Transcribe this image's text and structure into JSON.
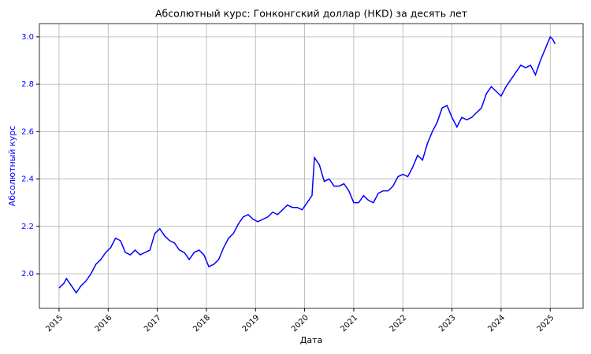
{
  "chart_data": {
    "type": "line",
    "title": "Абсолютный курс: Гонконгский доллар (HKD) за десять лет",
    "x_label": "Дата",
    "y_label": "Абсолютный курс",
    "y_label_color": "#0000ff",
    "x": [
      2015.0,
      2015.1,
      2015.15,
      2015.25,
      2015.35,
      2015.45,
      2015.55,
      2015.65,
      2015.75,
      2015.85,
      2015.95,
      2016.05,
      2016.15,
      2016.25,
      2016.35,
      2016.45,
      2016.55,
      2016.65,
      2016.75,
      2016.85,
      2016.95,
      2017.05,
      2017.15,
      2017.25,
      2017.35,
      2017.45,
      2017.55,
      2017.65,
      2017.75,
      2017.85,
      2017.95,
      2018.05,
      2018.15,
      2018.25,
      2018.35,
      2018.45,
      2018.55,
      2018.65,
      2018.75,
      2018.85,
      2018.95,
      2019.05,
      2019.15,
      2019.25,
      2019.35,
      2019.45,
      2019.55,
      2019.65,
      2019.75,
      2019.85,
      2019.95,
      2020.05,
      2020.15,
      2020.2,
      2020.3,
      2020.4,
      2020.5,
      2020.6,
      2020.7,
      2020.8,
      2020.9,
      2021.0,
      2021.1,
      2021.2,
      2021.3,
      2021.4,
      2021.5,
      2021.6,
      2021.7,
      2021.8,
      2021.9,
      2022.0,
      2022.1,
      2022.2,
      2022.3,
      2022.4,
      2022.5,
      2022.6,
      2022.7,
      2022.8,
      2022.9,
      2023.0,
      2023.1,
      2023.2,
      2023.3,
      2023.4,
      2023.5,
      2023.6,
      2023.7,
      2023.8,
      2023.9,
      2024.0,
      2024.1,
      2024.2,
      2024.3,
      2024.4,
      2024.5,
      2024.6,
      2024.7,
      2024.8,
      2024.9,
      2025.0,
      2025.05,
      2025.1
    ],
    "series": [
      {
        "name": "HKD",
        "color": "#0000ff",
        "values": [
          1.94,
          1.96,
          1.98,
          1.95,
          1.92,
          1.95,
          1.97,
          2.0,
          2.04,
          2.06,
          2.09,
          2.11,
          2.15,
          2.14,
          2.09,
          2.08,
          2.1,
          2.08,
          2.09,
          2.1,
          2.17,
          2.19,
          2.16,
          2.14,
          2.13,
          2.1,
          2.09,
          2.06,
          2.09,
          2.1,
          2.08,
          2.03,
          2.04,
          2.06,
          2.11,
          2.15,
          2.17,
          2.21,
          2.24,
          2.25,
          2.23,
          2.22,
          2.23,
          2.24,
          2.26,
          2.25,
          2.27,
          2.29,
          2.28,
          2.28,
          2.27,
          2.3,
          2.33,
          2.49,
          2.46,
          2.39,
          2.4,
          2.37,
          2.37,
          2.38,
          2.35,
          2.3,
          2.3,
          2.33,
          2.31,
          2.3,
          2.34,
          2.35,
          2.35,
          2.37,
          2.41,
          2.42,
          2.41,
          2.45,
          2.5,
          2.48,
          2.55,
          2.6,
          2.64,
          2.7,
          2.71,
          2.66,
          2.62,
          2.66,
          2.65,
          2.66,
          2.68,
          2.7,
          2.76,
          2.79,
          2.77,
          2.75,
          2.79,
          2.82,
          2.85,
          2.88,
          2.87,
          2.88,
          2.84,
          2.9,
          2.95,
          3.0,
          2.99,
          2.97
        ]
      }
    ],
    "xlim": [
      2014.6,
      2025.67
    ],
    "xticks": [
      2015,
      2016,
      2017,
      2018,
      2019,
      2020,
      2021,
      2022,
      2023,
      2024,
      2025
    ],
    "ylim": [
      1.854,
      3.056
    ],
    "yticks": [
      {
        "value": 2,
        "label": "2.0"
      },
      2.2,
      2.4,
      2.6,
      2.8,
      {
        "value": 3,
        "label": "3.0"
      }
    ],
    "grid": true
  }
}
